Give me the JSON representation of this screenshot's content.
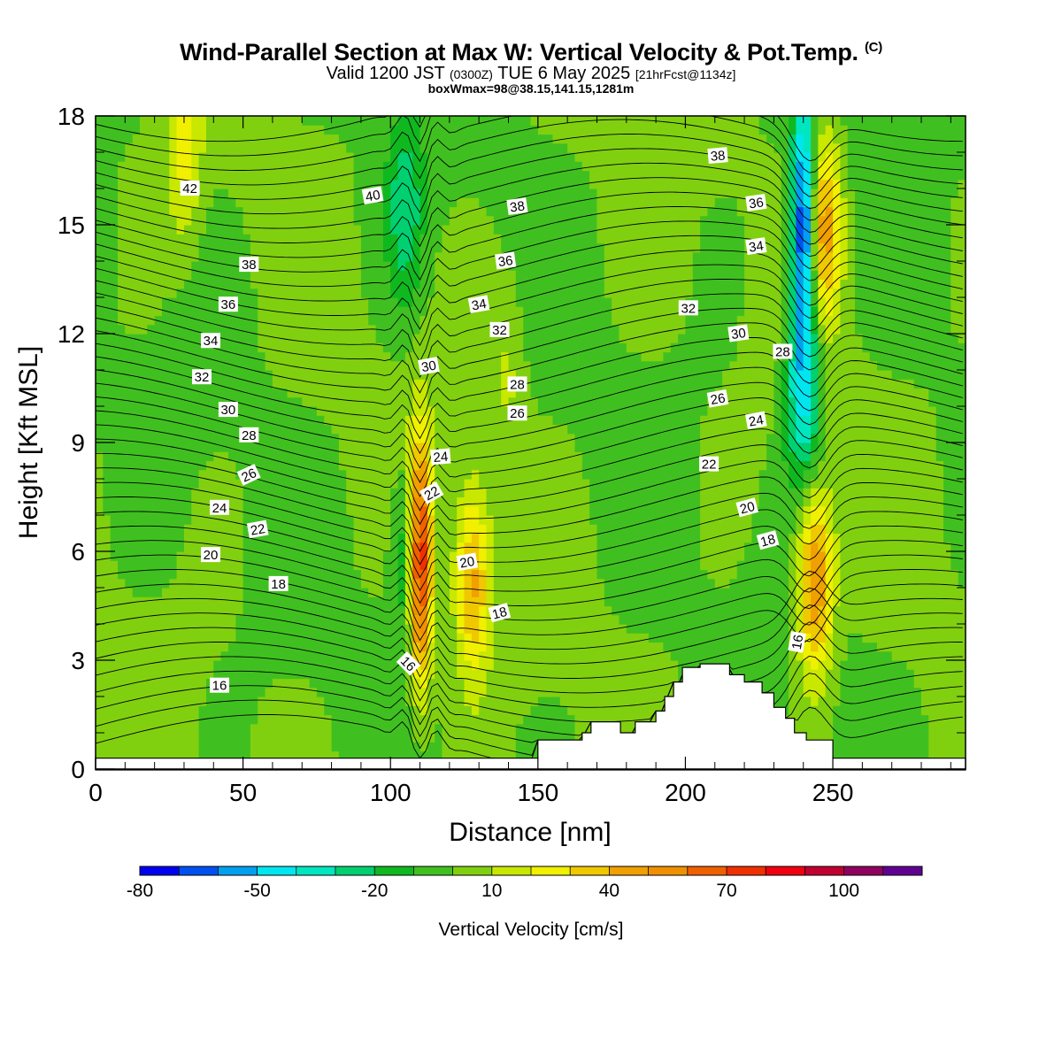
{
  "header": {
    "title": "Wind-Parallel Section at Max W: Vertical Velocity & Pot.Temp.",
    "title_mark": "(C)",
    "valid_prefix": "Valid 1200 JST",
    "valid_utc": "(0300Z)",
    "valid_date": "TUE 6 May 2025",
    "forecast": "[21hrFcst@1134z]",
    "box_info": "boxWmax=98@38.15,141.15,1281m"
  },
  "chart_data": {
    "type": "heatmap",
    "xlabel": "Distance [nm]",
    "ylabel": "Height [Kft MSL]",
    "xlim": [
      0,
      295
    ],
    "ylim": [
      0,
      18
    ],
    "x_ticks": [
      0,
      50,
      100,
      150,
      200,
      250
    ],
    "y_ticks": [
      0,
      3,
      6,
      9,
      12,
      15,
      18
    ],
    "colorbar": {
      "title": "Vertical Velocity [cm/s]",
      "min": -80,
      "max": 120,
      "step": 10,
      "tick_labels": [
        "-80",
        "-50",
        "-20",
        "10",
        "40",
        "70",
        "100"
      ],
      "tick_values": [
        -80,
        -50,
        -20,
        10,
        40,
        70,
        100
      ],
      "colors": [
        "#0000f0",
        "#0050f0",
        "#00a0f0",
        "#00e6f0",
        "#00e6c0",
        "#00d070",
        "#10b820",
        "#40c020",
        "#80d010",
        "#c8e800",
        "#f0f000",
        "#f0c800",
        "#f0a000",
        "#f09000",
        "#f06000",
        "#f03000",
        "#f00010",
        "#c00030",
        "#900060",
        "#600090"
      ]
    },
    "velocity_background": 0,
    "velocity_features": [
      {
        "x": 110,
        "z": 5.8,
        "w": 98
      },
      {
        "x": 128,
        "z": 5.2,
        "w": 42
      },
      {
        "x": 107,
        "z": 6.0,
        "w": -35
      },
      {
        "x": 240,
        "z": 15.0,
        "w": -80
      },
      {
        "x": 240,
        "z": 10.5,
        "w": -45
      },
      {
        "x": 247,
        "z": 15.0,
        "w": 45
      },
      {
        "x": 244,
        "z": 5.2,
        "w": 55
      },
      {
        "x": 105,
        "z": 15.5,
        "w": -25
      },
      {
        "x": 140,
        "z": 11.0,
        "w": 12
      },
      {
        "x": 30,
        "z": 17.0,
        "w": 22
      }
    ],
    "terrain": [
      {
        "x": 150,
        "z": 0.8
      },
      {
        "x": 162,
        "z": 0.8
      },
      {
        "x": 165,
        "z": 1.0
      },
      {
        "x": 168,
        "z": 1.3
      },
      {
        "x": 172,
        "z": 1.3
      },
      {
        "x": 178,
        "z": 1.0
      },
      {
        "x": 183,
        "z": 1.3
      },
      {
        "x": 190,
        "z": 1.6
      },
      {
        "x": 193,
        "z": 2.0
      },
      {
        "x": 196,
        "z": 2.4
      },
      {
        "x": 199,
        "z": 2.8
      },
      {
        "x": 205,
        "z": 2.9
      },
      {
        "x": 212,
        "z": 2.9
      },
      {
        "x": 215,
        "z": 2.6
      },
      {
        "x": 220,
        "z": 2.4
      },
      {
        "x": 226,
        "z": 2.1
      },
      {
        "x": 230,
        "z": 1.7
      },
      {
        "x": 234,
        "z": 1.4
      },
      {
        "x": 237,
        "z": 1.0
      },
      {
        "x": 241,
        "z": 0.8
      },
      {
        "x": 245,
        "z": 0.8
      },
      {
        "x": 249,
        "z": 0.8
      },
      {
        "x": 250,
        "z": 0.3
      }
    ],
    "theta_contours": {
      "step": 1,
      "labels": [
        {
          "text": "42",
          "x": 32,
          "z": 16.0,
          "rot": 0
        },
        {
          "text": "40",
          "x": 94,
          "z": 15.8,
          "rot": -10
        },
        {
          "text": "38",
          "x": 52,
          "z": 13.9,
          "rot": 0
        },
        {
          "text": "38",
          "x": 143,
          "z": 15.5,
          "rot": -8
        },
        {
          "text": "38",
          "x": 211,
          "z": 16.9,
          "rot": -5
        },
        {
          "text": "36",
          "x": 45,
          "z": 12.8,
          "rot": 0
        },
        {
          "text": "36",
          "x": 139,
          "z": 14.0,
          "rot": -8
        },
        {
          "text": "36",
          "x": 224,
          "z": 15.6,
          "rot": -8
        },
        {
          "text": "34",
          "x": 39,
          "z": 11.8,
          "rot": 0
        },
        {
          "text": "34",
          "x": 130,
          "z": 12.8,
          "rot": -10
        },
        {
          "text": "34",
          "x": 224,
          "z": 14.4,
          "rot": -8
        },
        {
          "text": "32",
          "x": 36,
          "z": 10.8,
          "rot": 0
        },
        {
          "text": "32",
          "x": 137,
          "z": 12.1,
          "rot": 0
        },
        {
          "text": "32",
          "x": 201,
          "z": 12.7,
          "rot": 0
        },
        {
          "text": "30",
          "x": 45,
          "z": 9.9,
          "rot": 0
        },
        {
          "text": "30",
          "x": 113,
          "z": 11.1,
          "rot": -10
        },
        {
          "text": "30",
          "x": 218,
          "z": 12.0,
          "rot": -8
        },
        {
          "text": "28",
          "x": 52,
          "z": 9.2,
          "rot": 0
        },
        {
          "text": "28",
          "x": 143,
          "z": 10.6,
          "rot": 0
        },
        {
          "text": "28",
          "x": 233,
          "z": 11.5,
          "rot": 0
        },
        {
          "text": "26",
          "x": 52,
          "z": 8.1,
          "rot": -25
        },
        {
          "text": "26",
          "x": 143,
          "z": 9.8,
          "rot": 0
        },
        {
          "text": "26",
          "x": 211,
          "z": 10.2,
          "rot": -10
        },
        {
          "text": "24",
          "x": 42,
          "z": 7.2,
          "rot": 0
        },
        {
          "text": "24",
          "x": 117,
          "z": 8.6,
          "rot": -5
        },
        {
          "text": "24",
          "x": 224,
          "z": 9.6,
          "rot": -10
        },
        {
          "text": "22",
          "x": 55,
          "z": 6.6,
          "rot": -10
        },
        {
          "text": "22",
          "x": 114,
          "z": 7.6,
          "rot": -30
        },
        {
          "text": "22",
          "x": 208,
          "z": 8.4,
          "rot": 0
        },
        {
          "text": "20",
          "x": 39,
          "z": 5.9,
          "rot": 0
        },
        {
          "text": "20",
          "x": 126,
          "z": 5.7,
          "rot": -10
        },
        {
          "text": "20",
          "x": 221,
          "z": 7.2,
          "rot": -15
        },
        {
          "text": "18",
          "x": 62,
          "z": 5.1,
          "rot": 0
        },
        {
          "text": "18",
          "x": 137,
          "z": 4.3,
          "rot": -15
        },
        {
          "text": "18",
          "x": 228,
          "z": 6.3,
          "rot": -15
        },
        {
          "text": "16",
          "x": 42,
          "z": 2.3,
          "rot": 0
        },
        {
          "text": "16",
          "x": 106,
          "z": 2.9,
          "rot": 45
        },
        {
          "text": "16",
          "x": 238,
          "z": 3.5,
          "rot": -80
        }
      ]
    }
  }
}
